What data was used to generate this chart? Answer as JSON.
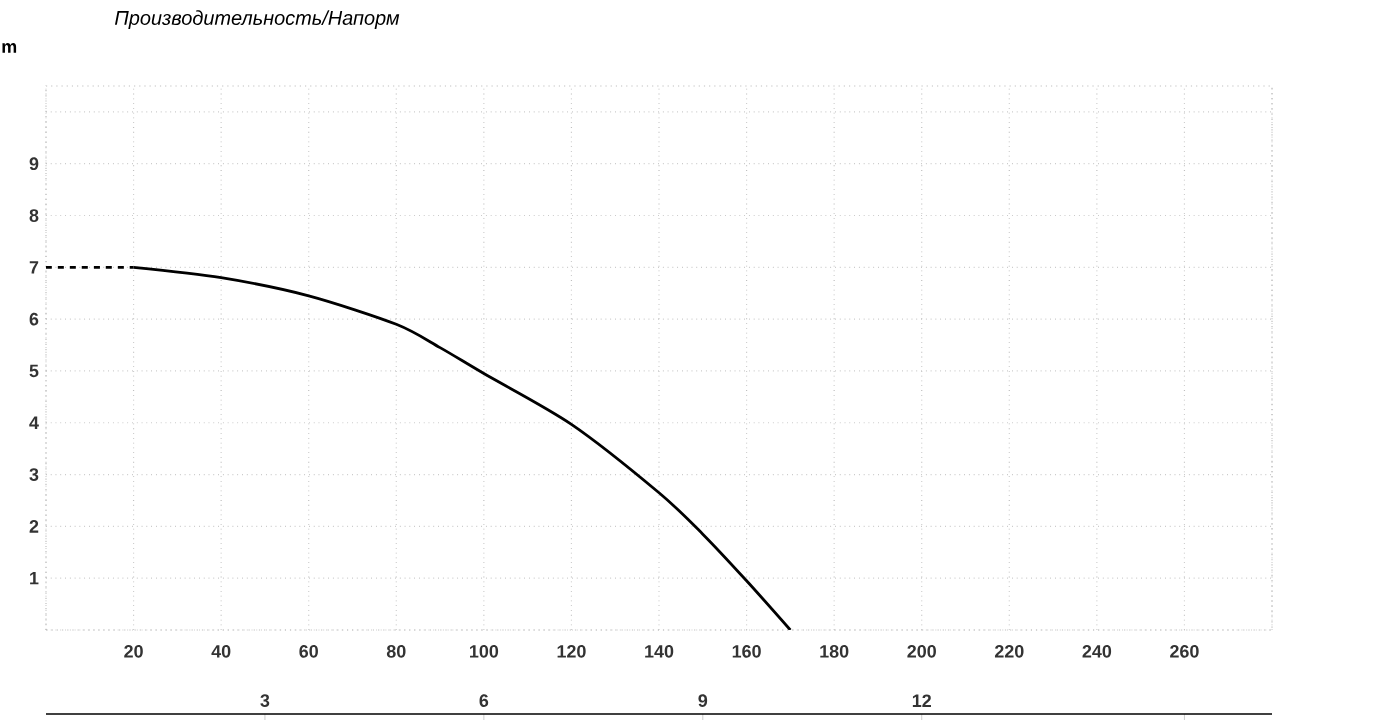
{
  "chart_data": {
    "type": "line",
    "title": "Производительность/Напорм",
    "ylabel": "m",
    "xlim": [
      0,
      280
    ],
    "ylim": [
      0,
      10.5
    ],
    "xticks": [
      {
        "value": 0,
        "label": null
      },
      20,
      40,
      60,
      80,
      100,
      120,
      140,
      160,
      180,
      200,
      220,
      240,
      260,
      {
        "value": 280,
        "label": null
      }
    ],
    "yticks": [
      {
        "value": 0,
        "label": null
      },
      1,
      2,
      3,
      4,
      5,
      6,
      7,
      8,
      9,
      {
        "value": 10,
        "label": null
      }
    ],
    "x2lim": [
      0,
      16.8
    ],
    "x2ticks": [
      3,
      6,
      9,
      12,
      {
        "value": 15.6,
        "label": null
      }
    ],
    "grid": true,
    "marker": "none",
    "series": [
      {
        "color": "#000000",
        "line_style": "dashed",
        "x": [
          0,
          20
        ],
        "values": [
          7.0,
          7.0
        ]
      },
      {
        "color": "#000000",
        "line_style": "solid",
        "x": [
          20,
          40,
          60,
          80,
          90,
          100,
          120,
          140,
          150,
          160,
          170
        ],
        "values": [
          7.0,
          6.8,
          6.45,
          5.9,
          5.45,
          4.95,
          3.97,
          2.65,
          1.85,
          0.95,
          0.0
        ]
      }
    ]
  }
}
